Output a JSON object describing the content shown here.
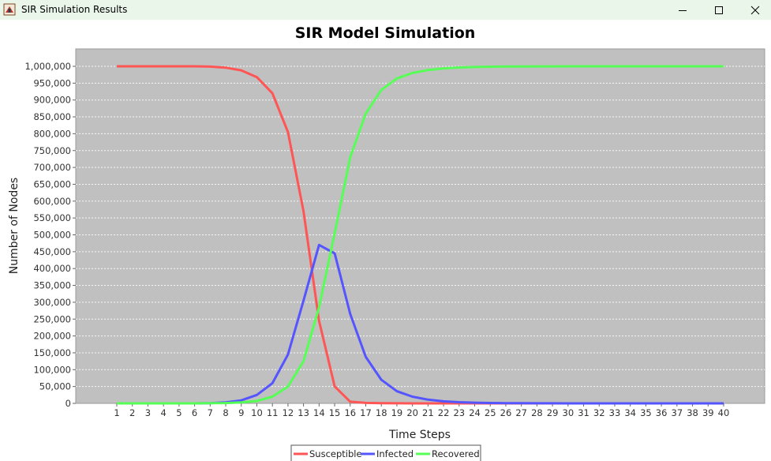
{
  "window": {
    "title": "SIR Simulation Results",
    "icon": "java-app-icon",
    "controls": {
      "minimize": "minimize-icon",
      "maximize": "maximize-icon",
      "close": "close-icon"
    }
  },
  "chart_data": {
    "type": "line",
    "title": "SIR Model Simulation",
    "xlabel": "Time Steps",
    "ylabel": "Number of Nodes",
    "x": [
      1,
      2,
      3,
      4,
      5,
      6,
      7,
      8,
      9,
      10,
      11,
      12,
      13,
      14,
      15,
      16,
      17,
      18,
      19,
      20,
      21,
      22,
      23,
      24,
      25,
      26,
      27,
      28,
      29,
      30,
      31,
      32,
      33,
      34,
      35,
      36,
      37,
      38,
      39,
      40
    ],
    "ylim": [
      0,
      1050000
    ],
    "yticks": [
      0,
      50000,
      100000,
      150000,
      200000,
      250000,
      300000,
      350000,
      400000,
      450000,
      500000,
      550000,
      600000,
      650000,
      700000,
      750000,
      800000,
      850000,
      900000,
      950000,
      1000000
    ],
    "ytick_labels": [
      "0",
      "50,000",
      "100,000",
      "150,000",
      "200,000",
      "250,000",
      "300,000",
      "350,000",
      "400,000",
      "450,000",
      "500,000",
      "550,000",
      "600,000",
      "650,000",
      "700,000",
      "750,000",
      "800,000",
      "850,000",
      "900,000",
      "950,000",
      "1,000,000"
    ],
    "grid": true,
    "legend_position": "bottom-center",
    "plot_background": "#c0c0c0",
    "series": [
      {
        "name": "Susceptible",
        "color": "#ff5555",
        "values": [
          999990,
          999985,
          999975,
          999960,
          999940,
          999900,
          999000,
          996000,
          988000,
          968000,
          920000,
          805000,
          570000,
          245000,
          50000,
          5000,
          1500,
          500,
          200,
          100,
          50,
          30,
          20,
          10,
          5,
          5,
          5,
          5,
          5,
          5,
          5,
          5,
          5,
          5,
          5,
          5,
          5,
          5,
          5,
          5
        ]
      },
      {
        "name": "Infected",
        "color": "#5555ff",
        "values": [
          10,
          14,
          20,
          30,
          45,
          80,
          600,
          3000,
          9000,
          25000,
          60000,
          145000,
          305000,
          470000,
          445000,
          265000,
          138000,
          70000,
          36000,
          20000,
          11000,
          6000,
          3500,
          2000,
          1200,
          700,
          400,
          250,
          150,
          100,
          60,
          40,
          25,
          15,
          10,
          8,
          6,
          4,
          3,
          2
        ]
      },
      {
        "name": "Recovered",
        "color": "#55ff55",
        "values": [
          0,
          1,
          5,
          10,
          15,
          20,
          400,
          1000,
          3000,
          7000,
          20000,
          50000,
          125000,
          285000,
          505000,
          730000,
          860000,
          930000,
          964000,
          980000,
          989000,
          994000,
          996500,
          998000,
          998800,
          999300,
          999600,
          999750,
          999850,
          999900,
          999940,
          999960,
          999975,
          999985,
          999990,
          999992,
          999994,
          999996,
          999997,
          999998
        ]
      }
    ]
  }
}
